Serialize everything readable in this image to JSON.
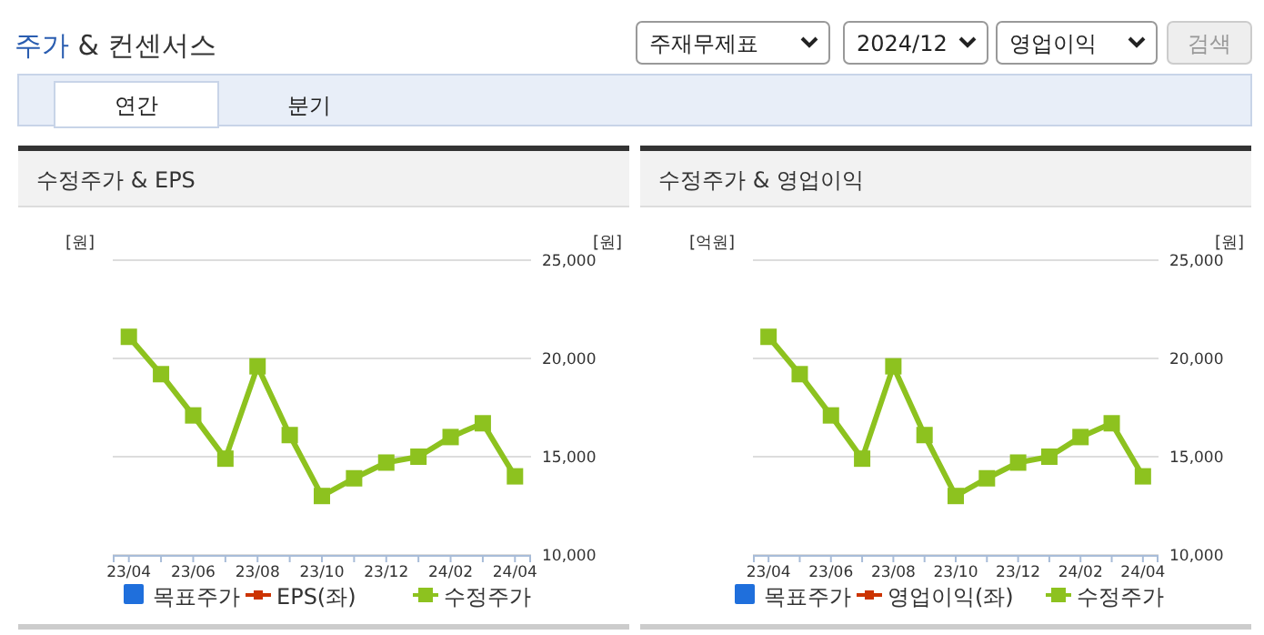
{
  "chart_data": [
    {
      "type": "other",
      "title": "주가 & 컨센서스",
      "annotations": [
        "주재무제표",
        "2024/12",
        "영업이익",
        "검색",
        "연간",
        "분기"
      ]
    },
    {
      "type": "line",
      "title": "수정주가 & EPS",
      "ylabel": "[원]",
      "y2label": "[원]",
      "categories": [
        "23/04",
        null,
        "23/06",
        null,
        "23/08",
        null,
        "23/10",
        null,
        "23/12",
        null,
        "24/02",
        null,
        "24/04"
      ],
      "y2lim": [
        10000,
        25000
      ],
      "y2ticks": [
        {
          "value": 10000,
          "label": "10,000"
        },
        {
          "value": 15000,
          "label": "15,000"
        },
        {
          "value": 20000,
          "label": "20,000"
        },
        {
          "value": 25000,
          "label": "25,000"
        }
      ],
      "grid": "y",
      "legend": "bottom",
      "marker": "square",
      "tick_labels": "x",
      "series": [
        {
          "name": "목표주가",
          "type": "bar",
          "color": "#1f6fdc",
          "values": [
            null,
            null,
            null,
            null,
            null,
            null,
            null,
            null,
            null,
            null,
            null,
            null,
            null
          ]
        },
        {
          "name": "EPS(좌)",
          "type": "line",
          "color": "#cc3300",
          "values": [
            null,
            null,
            null,
            null,
            null,
            null,
            null,
            null,
            null,
            null,
            null,
            null,
            null
          ]
        },
        {
          "name": "수정주가",
          "type": "line",
          "axis": "y2",
          "color": "#8dc21f",
          "values": [
            21100,
            19200,
            17100,
            14900,
            19600,
            16100,
            13000,
            13900,
            14700,
            15000,
            16000,
            16700,
            14000
          ]
        }
      ]
    },
    {
      "type": "line",
      "title": "수정주가 & 영업이익",
      "ylabel": "[억원]",
      "y2label": "[원]",
      "categories": [
        "23/04",
        null,
        "23/06",
        null,
        "23/08",
        null,
        "23/10",
        null,
        "23/12",
        null,
        "24/02",
        null,
        "24/04"
      ],
      "y2lim": [
        10000,
        25000
      ],
      "y2ticks": [
        {
          "value": 10000,
          "label": "10,000"
        },
        {
          "value": 15000,
          "label": "15,000"
        },
        {
          "value": 20000,
          "label": "20,000"
        },
        {
          "value": 25000,
          "label": "25,000"
        }
      ],
      "grid": "y",
      "legend": "bottom",
      "marker": "square",
      "tick_labels": "x",
      "series": [
        {
          "name": "목표주가",
          "type": "bar",
          "color": "#1f6fdc",
          "values": [
            null,
            null,
            null,
            null,
            null,
            null,
            null,
            null,
            null,
            null,
            null,
            null,
            null
          ]
        },
        {
          "name": "영업이익(좌)",
          "type": "line",
          "color": "#cc3300",
          "values": [
            null,
            null,
            null,
            null,
            null,
            null,
            null,
            null,
            null,
            null,
            null,
            null,
            null
          ]
        },
        {
          "name": "수정주가",
          "type": "line",
          "axis": "y2",
          "color": "#8dc21f",
          "values": [
            21100,
            19200,
            17100,
            14900,
            19600,
            16100,
            13000,
            13900,
            14700,
            15000,
            16000,
            16700,
            14000
          ]
        }
      ]
    }
  ]
}
